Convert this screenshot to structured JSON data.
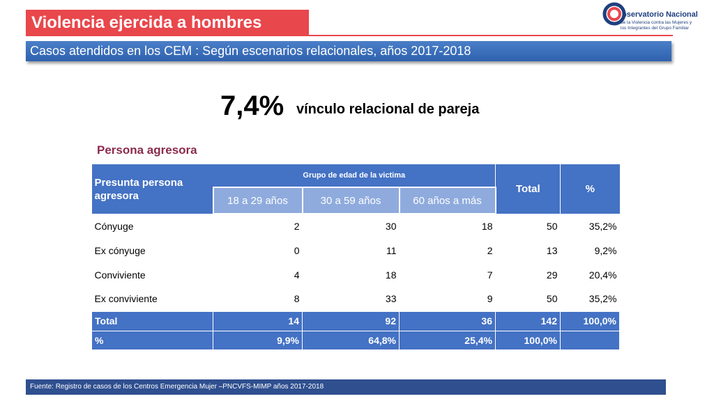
{
  "header": {
    "title": "Violencia ejercida a hombres",
    "subtitle": "Casos atendidos en los CEM :  Según escenarios relacionales, años 2017-2018"
  },
  "logo": {
    "name": "bservatorio Nacional",
    "tagline": [
      "de la Violencia contra las Mujeres y",
      "los Integrantes del Grupo Familiar"
    ]
  },
  "highlight": {
    "value": "7,4%",
    "label": "vínculo relacional de pareja"
  },
  "section": "Persona agresora",
  "table": {
    "header": {
      "first": "Presunta persona agresora",
      "group": "Grupo de edad de la victima",
      "ages": [
        "18 a 29 años",
        "30 a 59 años",
        "60 años a más"
      ],
      "total": "Total",
      "percent": "%"
    },
    "rows": [
      [
        "Cónyuge",
        2,
        30,
        18,
        50,
        "35,2%"
      ],
      [
        "Ex cónyuge",
        0,
        11,
        2,
        13,
        "9,2%"
      ],
      [
        "Conviviente",
        4,
        18,
        7,
        29,
        "20,4%"
      ],
      [
        "Ex conviviente",
        8,
        33,
        9,
        50,
        "35,2%"
      ]
    ],
    "total_row": [
      "Total",
      14,
      92,
      36,
      142,
      "100,0%"
    ],
    "percent_row": [
      "%",
      "9,9%",
      "64,8%",
      "25,4%",
      "100,0%"
    ]
  },
  "footer": {
    "source": "Fuente: Registro de casos de los Centros Emergencia Mujer –PNCVFS-MIMP   años 2017-2018"
  }
}
